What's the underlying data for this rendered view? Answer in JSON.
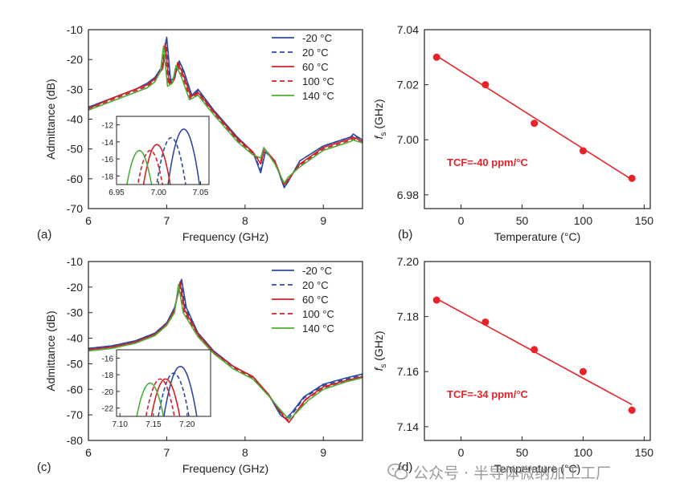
{
  "panel_labels": [
    "(a)",
    "(b)",
    "(c)",
    "(d)"
  ],
  "watermark": {
    "text": "公众号 · 半导体微纳加工工厂",
    "icon": "wechat-icon"
  },
  "chart_data": [
    {
      "id": "a",
      "type": "line",
      "xlabel": "Frequency (GHz)",
      "ylabel": "Admittance (dB)",
      "xlim": [
        6,
        9.5
      ],
      "ylim": [
        -70,
        -10
      ],
      "xticks": [
        6,
        7,
        8,
        9
      ],
      "yticks": [
        -70,
        -60,
        -50,
        -40,
        -30,
        -20,
        -10
      ],
      "legend": {
        "position": "top-right"
      },
      "series": [
        {
          "name": "-20 °C",
          "color": "#2e4a9e",
          "dash": "solid",
          "x": [
            6.0,
            6.3,
            6.6,
            6.75,
            6.85,
            6.95,
            7.0,
            7.05,
            7.1,
            7.16,
            7.22,
            7.32,
            7.4,
            7.6,
            7.9,
            8.1,
            8.2,
            8.26,
            8.38,
            8.5,
            8.55,
            8.7,
            9.0,
            9.35,
            9.38,
            9.5
          ],
          "y": [
            -36,
            -33,
            -30,
            -28,
            -26,
            -22,
            -12.5,
            -27,
            -26,
            -20.5,
            -24,
            -32,
            -30,
            -37,
            -46,
            -51,
            -58,
            -51,
            -54,
            -63,
            -61,
            -54,
            -49,
            -46,
            -45,
            -47
          ]
        },
        {
          "name": "20 °C",
          "color": "#2e4a9e",
          "dash": "dashed",
          "x": [
            6.0,
            6.3,
            6.6,
            6.75,
            6.85,
            6.95,
            6.99,
            7.04,
            7.1,
            7.15,
            7.22,
            7.32,
            7.4,
            7.6,
            7.9,
            8.1,
            8.2,
            8.26,
            8.38,
            8.5,
            8.55,
            8.7,
            9.0,
            9.35,
            9.38,
            9.5
          ],
          "y": [
            -36,
            -33,
            -30,
            -28,
            -26,
            -23,
            -13.5,
            -27.5,
            -26.5,
            -21,
            -24.5,
            -32,
            -30.5,
            -37,
            -46,
            -51,
            -57,
            -51,
            -54,
            -62.5,
            -61,
            -54,
            -49,
            -46,
            -45.5,
            -47
          ]
        },
        {
          "name": "60 °C",
          "color": "#d42027",
          "dash": "solid",
          "x": [
            6.0,
            6.3,
            6.6,
            6.75,
            6.85,
            6.95,
            6.98,
            7.03,
            7.09,
            7.14,
            7.21,
            7.31,
            7.4,
            7.6,
            7.9,
            8.1,
            8.2,
            8.25,
            8.38,
            8.5,
            8.55,
            8.7,
            9.0,
            9.35,
            9.38,
            9.5
          ],
          "y": [
            -36.5,
            -33,
            -30,
            -28.5,
            -26.5,
            -23,
            -14.5,
            -28,
            -27,
            -21,
            -25,
            -32.5,
            -31,
            -37.5,
            -46.5,
            -51,
            -55,
            -50,
            -54,
            -62,
            -60.5,
            -55,
            -49.5,
            -46.5,
            -46,
            -47.5
          ]
        },
        {
          "name": "100 °C",
          "color": "#d42027",
          "dash": "dashed",
          "x": [
            6.0,
            6.3,
            6.6,
            6.75,
            6.85,
            6.93,
            6.97,
            7.02,
            7.08,
            7.13,
            7.2,
            7.3,
            7.4,
            7.6,
            7.9,
            8.1,
            8.2,
            8.25,
            8.38,
            8.5,
            8.55,
            8.7,
            9.0,
            9.35,
            9.38,
            9.5
          ],
          "y": [
            -37,
            -33.5,
            -30.5,
            -29,
            -27,
            -23.5,
            -15,
            -28.5,
            -27.5,
            -21.5,
            -25.5,
            -33,
            -31.5,
            -38,
            -47,
            -51.5,
            -54,
            -50,
            -54.5,
            -62,
            -60,
            -55.5,
            -50,
            -47,
            -46.5,
            -48
          ]
        },
        {
          "name": "140 °C",
          "color": "#4caf3a",
          "dash": "solid",
          "x": [
            6.0,
            6.3,
            6.6,
            6.75,
            6.85,
            6.92,
            6.96,
            7.01,
            7.07,
            7.12,
            7.19,
            7.29,
            7.4,
            7.6,
            7.9,
            8.1,
            8.2,
            8.24,
            8.38,
            8.5,
            8.55,
            8.7,
            9.0,
            9.35,
            9.38,
            9.5
          ],
          "y": [
            -37,
            -34,
            -31,
            -29.5,
            -27.5,
            -24,
            -15.5,
            -29,
            -28,
            -22,
            -26,
            -33.5,
            -32,
            -38.5,
            -47.5,
            -52,
            -53,
            -49.5,
            -55,
            -61.5,
            -59.5,
            -56,
            -50.5,
            -47.5,
            -47,
            -48
          ]
        }
      ],
      "inset": {
        "xlim": [
          6.95,
          7.06
        ],
        "ylim": [
          -19,
          -11
        ],
        "xticks": [
          6.95,
          7.0,
          7.05
        ],
        "xtick_labels": [
          "6.95",
          "7.00",
          "7.05"
        ],
        "yticks": [
          -18,
          -16,
          -14,
          -12
        ],
        "peaks": [
          {
            "center": 7.03,
            "peak": -12.5
          },
          {
            "center": 7.015,
            "peak": -13.5
          },
          {
            "center": 6.998,
            "peak": -14.3
          },
          {
            "center": 6.99,
            "peak": -15.0
          },
          {
            "center": 6.977,
            "peak": -15.0
          }
        ],
        "half_width": 0.022
      }
    },
    {
      "id": "b",
      "type": "scatter",
      "xlabel": "Temperature (°C)",
      "ylabel_main": "f",
      "ylabel_sub": "s",
      "ylabel_unit": " (GHz)",
      "xlim": [
        -30,
        155
      ],
      "ylim": [
        6.975,
        7.04
      ],
      "xticks": [
        0,
        50,
        100,
        150
      ],
      "yticks": [
        6.98,
        7.0,
        7.02,
        7.04
      ],
      "ytick_labels": [
        "6.98",
        "7.00",
        "7.02",
        "7.04"
      ],
      "color": "#e8232a",
      "points": {
        "x": [
          -20,
          20,
          60,
          100,
          140
        ],
        "y": [
          7.03,
          7.02,
          7.006,
          6.996,
          6.986
        ]
      },
      "fit": {
        "x": [
          -20,
          140
        ],
        "y": [
          7.0305,
          6.9855
        ]
      },
      "annotation": "TCF=-40 ppm/°C"
    },
    {
      "id": "c",
      "type": "line",
      "xlabel": "Frequency (GHz)",
      "ylabel": "Admittance (dB)",
      "xlim": [
        6,
        9.5
      ],
      "ylim": [
        -80,
        -10
      ],
      "xticks": [
        6,
        7,
        8,
        9
      ],
      "yticks": [
        -80,
        -70,
        -60,
        -50,
        -40,
        -30,
        -20,
        -10
      ],
      "legend": {
        "position": "top-right"
      },
      "series": [
        {
          "name": "-20 °C",
          "color": "#2e4a9e",
          "dash": "solid",
          "x": [
            6.0,
            6.3,
            6.6,
            6.85,
            7.0,
            7.1,
            7.19,
            7.25,
            7.4,
            7.6,
            7.85,
            8.1,
            8.3,
            8.45,
            8.52,
            8.6,
            8.75,
            9.0,
            9.3,
            9.5
          ],
          "y": [
            -44,
            -43,
            -41,
            -38,
            -34,
            -28,
            -17,
            -28,
            -38,
            -45,
            -51,
            -55,
            -62,
            -70,
            -71.5,
            -69,
            -63,
            -58,
            -55.5,
            -54
          ]
        },
        {
          "name": "20 °C",
          "color": "#2e4a9e",
          "dash": "dashed",
          "x": [
            6.0,
            6.3,
            6.6,
            6.85,
            7.0,
            7.1,
            7.18,
            7.24,
            7.4,
            7.6,
            7.85,
            8.1,
            8.3,
            8.47,
            8.54,
            8.62,
            8.75,
            9.0,
            9.3,
            9.5
          ],
          "y": [
            -44,
            -43,
            -41,
            -38,
            -34,
            -28.5,
            -17.5,
            -28.5,
            -38,
            -45,
            -51,
            -55,
            -62,
            -70.5,
            -72,
            -69,
            -63.5,
            -58.5,
            -56,
            -54.5
          ]
        },
        {
          "name": "60 °C",
          "color": "#d42027",
          "dash": "solid",
          "x": [
            6.0,
            6.3,
            6.6,
            6.85,
            7.0,
            7.1,
            7.17,
            7.23,
            7.4,
            7.6,
            7.85,
            8.1,
            8.3,
            8.5,
            8.56,
            8.64,
            8.77,
            9.0,
            9.3,
            9.5
          ],
          "y": [
            -44.5,
            -43.5,
            -41.5,
            -38.5,
            -34.5,
            -29,
            -18,
            -29,
            -38.5,
            -45.5,
            -51,
            -55,
            -62,
            -71,
            -73,
            -69.5,
            -64,
            -59,
            -56.5,
            -55
          ]
        },
        {
          "name": "100 °C",
          "color": "#d42027",
          "dash": "dashed",
          "x": [
            6.0,
            6.3,
            6.6,
            6.85,
            7.0,
            7.1,
            7.16,
            7.22,
            7.4,
            7.6,
            7.85,
            8.1,
            8.3,
            8.51,
            8.57,
            8.65,
            8.78,
            9.0,
            9.3,
            9.5
          ],
          "y": [
            -44.5,
            -43.5,
            -41.5,
            -38.5,
            -34.5,
            -29.5,
            -18.5,
            -29.5,
            -39,
            -45.5,
            -51.5,
            -55.5,
            -62.5,
            -71,
            -72.5,
            -69.5,
            -64,
            -59.5,
            -56.5,
            -55
          ]
        },
        {
          "name": "140 °C",
          "color": "#4caf3a",
          "dash": "solid",
          "x": [
            6.0,
            6.3,
            6.6,
            6.85,
            7.0,
            7.1,
            7.15,
            7.21,
            7.4,
            7.6,
            7.85,
            8.1,
            8.3,
            8.52,
            8.58,
            8.66,
            8.8,
            9.0,
            9.3,
            9.5
          ],
          "y": [
            -45,
            -44,
            -42,
            -39,
            -35,
            -30,
            -19,
            -30,
            -39.5,
            -46,
            -52,
            -56,
            -62.5,
            -70.5,
            -71.5,
            -69,
            -64.5,
            -60,
            -57,
            -55.5
          ]
        }
      ],
      "inset": {
        "xlim": [
          7.095,
          7.235
        ],
        "ylim": [
          -23,
          -15
        ],
        "xticks": [
          7.1,
          7.15,
          7.2
        ],
        "xtick_labels": [
          "7.10",
          "7.15",
          "7.20"
        ],
        "yticks": [
          -22,
          -20,
          -18,
          -16
        ],
        "peaks": [
          {
            "center": 7.19,
            "peak": -17.0
          },
          {
            "center": 7.18,
            "peak": -17.8
          },
          {
            "center": 7.168,
            "peak": -18.5
          },
          {
            "center": 7.16,
            "peak": -18.5
          },
          {
            "center": 7.145,
            "peak": -19.0
          }
        ],
        "half_width": 0.03
      }
    },
    {
      "id": "d",
      "type": "scatter",
      "xlabel": "Temperature (°C)",
      "ylabel_main": "f",
      "ylabel_sub": "s",
      "ylabel_unit": " (GHz)",
      "xlim": [
        -30,
        155
      ],
      "ylim": [
        7.135,
        7.2
      ],
      "xticks": [
        0,
        50,
        100,
        150
      ],
      "yticks": [
        7.14,
        7.16,
        7.18,
        7.2
      ],
      "ytick_labels": [
        "7.14",
        "7.16",
        "7.18",
        "7.20"
      ],
      "color": "#e8232a",
      "points": {
        "x": [
          -20,
          20,
          60,
          100,
          140
        ],
        "y": [
          7.186,
          7.178,
          7.168,
          7.16,
          7.146
        ]
      },
      "fit": {
        "x": [
          -20,
          140
        ],
        "y": [
          7.1865,
          7.148
        ]
      },
      "annotation": "TCF=-34 ppm/°C"
    }
  ]
}
